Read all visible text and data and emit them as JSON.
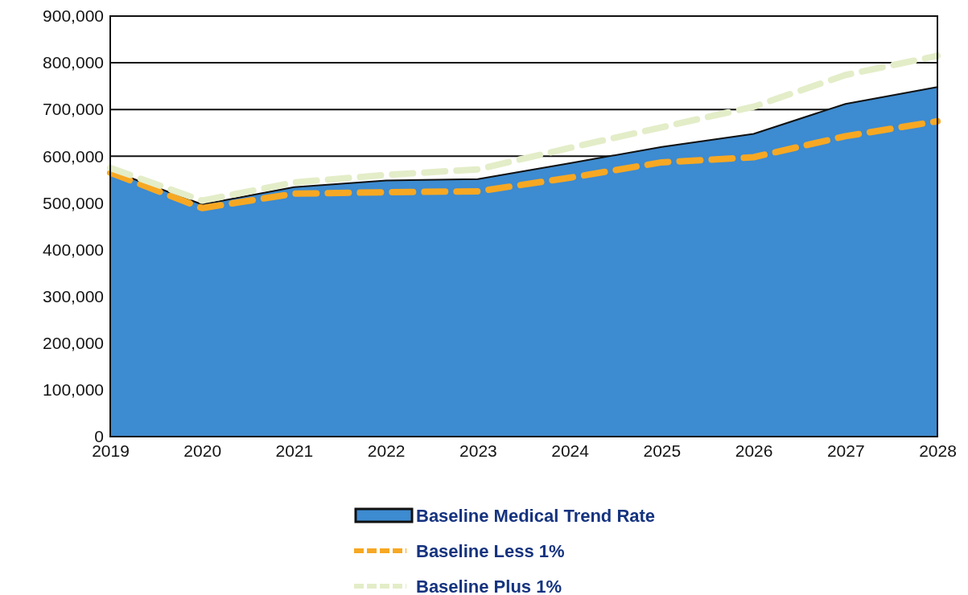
{
  "chart_data": {
    "type": "area",
    "categories": [
      "2019",
      "2020",
      "2021",
      "2022",
      "2023",
      "2024",
      "2025",
      "2026",
      "2027",
      "2028"
    ],
    "series": [
      {
        "name": "Baseline Medical Trend Rate",
        "color": "#3d8bd0",
        "values": [
          570000,
          497000,
          534000,
          548000,
          551000,
          585000,
          620000,
          648000,
          712000,
          748000
        ]
      },
      {
        "name": "Baseline Less 1%",
        "type": "line",
        "line_style": "dashed",
        "color": "#f7a823",
        "values": [
          565000,
          489000,
          520000,
          523000,
          525000,
          554000,
          587000,
          598000,
          643000,
          675000
        ]
      },
      {
        "name": "Baseline Plus 1%",
        "type": "line",
        "line_style": "dashed",
        "color": "#e3edc8",
        "values": [
          575000,
          505000,
          544000,
          560000,
          572000,
          618000,
          662000,
          706000,
          774000,
          815000
        ]
      }
    ],
    "ylim": [
      0,
      900000
    ],
    "yticks": [
      {
        "value": 0,
        "label": "0"
      },
      {
        "value": 100000,
        "label": "100,000"
      },
      {
        "value": 200000,
        "label": "200,000"
      },
      {
        "value": 300000,
        "label": "300,000"
      },
      {
        "value": 400000,
        "label": "400,000"
      },
      {
        "value": 500000,
        "label": "500,000"
      },
      {
        "value": 600000,
        "label": "600,000"
      },
      {
        "value": 700000,
        "label": "700,000"
      },
      {
        "value": 800000,
        "label": "800,000"
      },
      {
        "value": 900000,
        "label": "900,000"
      }
    ],
    "grid": "y",
    "legend": "bottom"
  }
}
